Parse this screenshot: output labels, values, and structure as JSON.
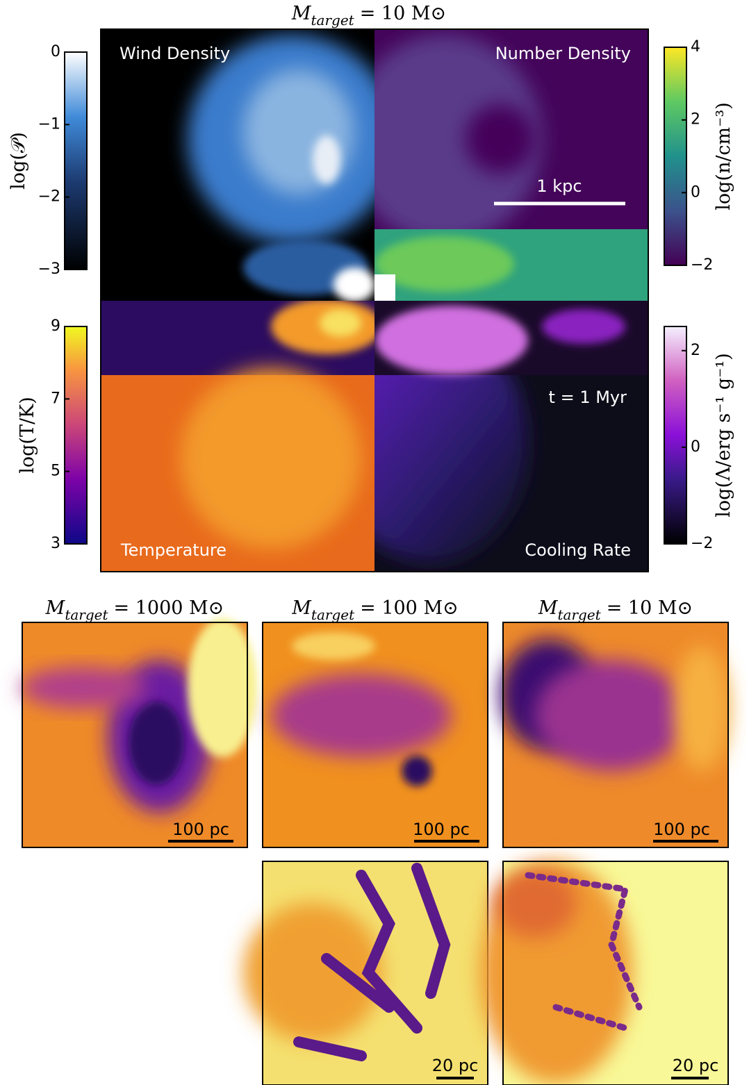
{
  "title": {
    "symbol": "M",
    "subscript": "target",
    "rest": "= 10 M⊙"
  },
  "quadrants": {
    "top_left": "Wind Density",
    "top_right": "Number Density",
    "bottom_left": "Temperature",
    "bottom_right": "Cooling Rate"
  },
  "scale_bar": "1 kpc",
  "time_label": "t = 1 Myr",
  "colorbars": [
    {
      "label": "log(𝒫)",
      "lim": [
        -3,
        0
      ],
      "ticks": [
        0,
        {
          "value": -1,
          "label": "−1"
        },
        {
          "value": -2,
          "label": "−2"
        },
        {
          "value": -3,
          "label": "−3"
        }
      ]
    },
    {
      "label": "log(n/cm⁻³)",
      "lim": [
        -2,
        4
      ],
      "ticks": [
        4,
        2,
        0,
        {
          "value": -2,
          "label": "−2"
        }
      ]
    },
    {
      "label": "log(T/K)",
      "lim": [
        3,
        9
      ],
      "ticks": [
        9,
        7,
        5,
        3
      ]
    },
    {
      "label": "log(Λ/erg s⁻¹ g⁻¹)",
      "lim": [
        -2,
        2.5
      ],
      "ticks": [
        2,
        0,
        {
          "value": -2,
          "label": "−2"
        }
      ]
    }
  ],
  "zoom_panels": [
    {
      "title": {
        "symbol": "M",
        "subscript": "target",
        "rest": "= 1000 M⊙"
      },
      "scale": "100 pc"
    },
    {
      "title": {
        "symbol": "M",
        "subscript": "target",
        "rest": "= 100 M⊙"
      },
      "scale": "100 pc",
      "zoom_scale": "20 pc"
    },
    {
      "title": {
        "symbol": "M",
        "subscript": "target",
        "rest": "= 10 M⊙"
      },
      "scale": "100 pc",
      "zoom_scale": "20 pc"
    }
  ]
}
